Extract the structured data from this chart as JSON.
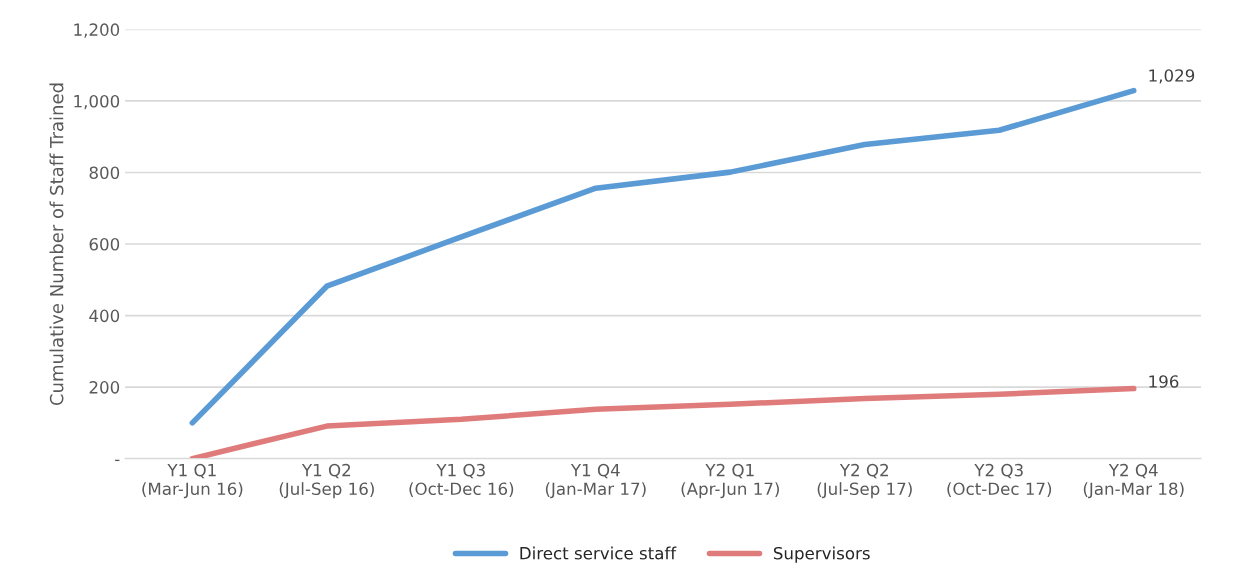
{
  "chart_data": {
    "type": "line",
    "ylabel": "Cumulative Number of Staff Trained",
    "categories": [
      "Y1 Q1\n(Mar-Jun 16)",
      "Y1 Q2\n(Jul-Sep 16)",
      "Y1 Q3\n(Oct-Dec 16)",
      "Y1 Q4\n(Jan-Mar 17)",
      "Y2 Q1\n(Apr-Jun 17)",
      "Y2 Q2\n(Jul-Sep 17)",
      "Y2 Q3\n(Oct-Dec 17)",
      "Y2 Q4\n(Jan-Mar 18)"
    ],
    "series": [
      {
        "name": "Direct service staff",
        "color": "#5b9bd5",
        "values": [
          100,
          482,
          620,
          756,
          801,
          878,
          918,
          1029
        ],
        "value_labels": [
          null,
          null,
          null,
          null,
          null,
          null,
          null,
          "1,029"
        ]
      },
      {
        "name": "Supervisors",
        "color": "#e07b7b",
        "values": [
          0,
          91,
          110,
          138,
          152,
          168,
          180,
          196
        ],
        "value_labels": [
          null,
          null,
          null,
          null,
          null,
          null,
          null,
          "196"
        ]
      }
    ],
    "ylim": [
      0,
      1200
    ],
    "yticks": [
      {
        "value": 0,
        "label": "-"
      },
      {
        "value": 200,
        "label": "200"
      },
      {
        "value": 400,
        "label": "400"
      },
      {
        "value": 600,
        "label": "600"
      },
      {
        "value": 800,
        "label": "800"
      },
      {
        "value": 1000,
        "label": "1,000"
      },
      {
        "value": 1200,
        "label": "1,200"
      }
    ],
    "grid": "y",
    "legend": "bottom",
    "marker": "none",
    "line_style": "solid"
  }
}
